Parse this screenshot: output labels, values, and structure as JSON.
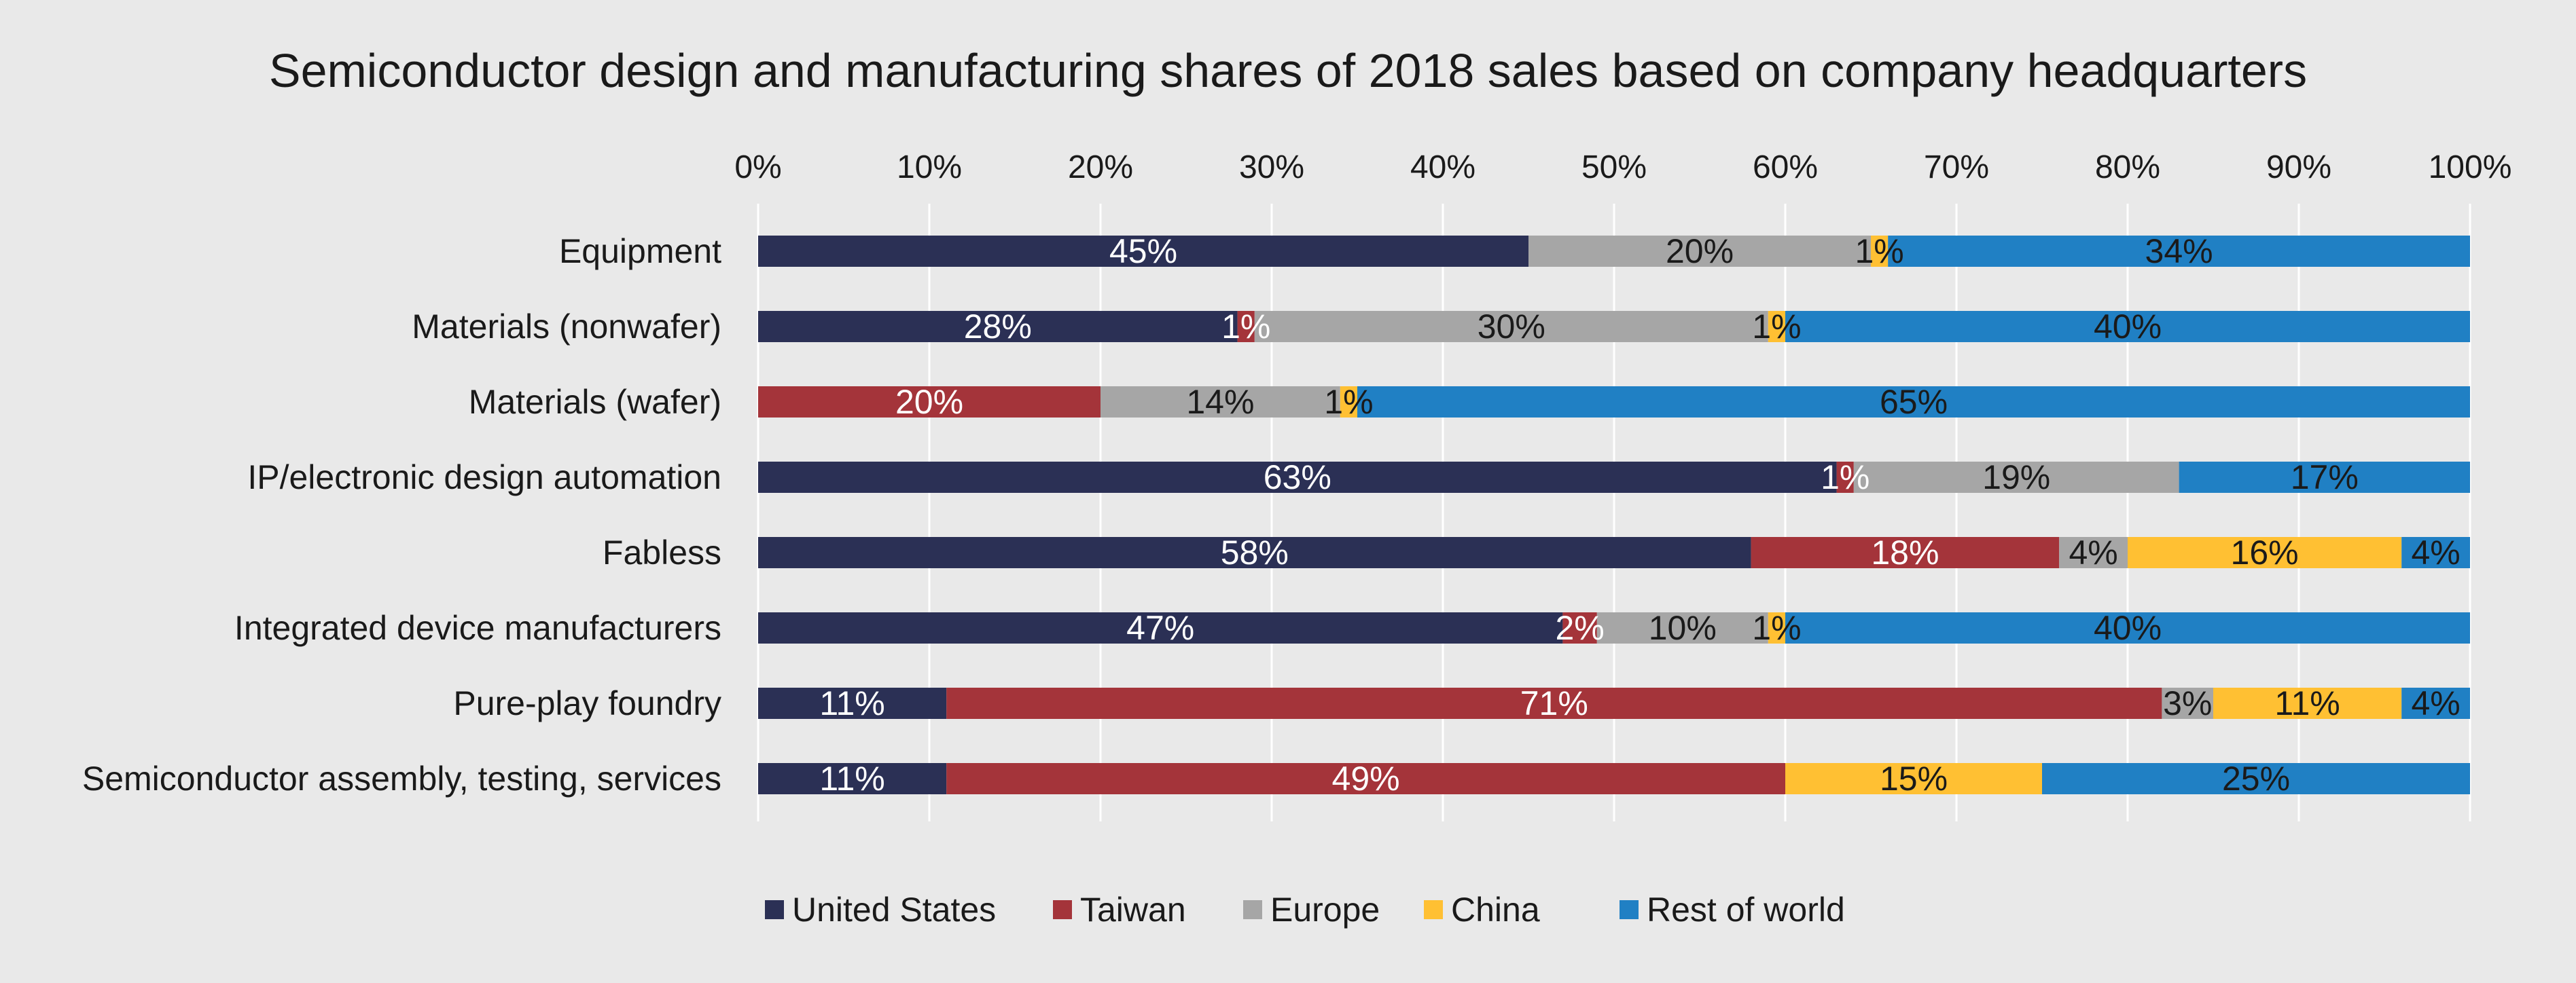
{
  "chart_data": {
    "type": "bar",
    "orientation": "horizontal",
    "stacked": true,
    "title": "Semiconductor design and manufacturing shares of 2018 sales based on company headquarters",
    "xlabel": "",
    "ylabel": "",
    "xlim": [
      0,
      100
    ],
    "x_ticks": [
      "0%",
      "10%",
      "20%",
      "30%",
      "40%",
      "50%",
      "60%",
      "70%",
      "80%",
      "90%",
      "100%"
    ],
    "x_axis_position": "top",
    "grid": true,
    "legend_position": "bottom",
    "categories": [
      "Equipment",
      "Materials (nonwafer)",
      "Materials (wafer)",
      "IP/electronic design automation",
      "Fabless",
      "Integrated device manufacturers",
      "Pure-play foundry",
      "Semiconductor assembly, testing, services"
    ],
    "series": [
      {
        "name": "United States",
        "color": "#2b3055",
        "label_color": "#ffffff",
        "values": [
          45,
          28,
          0,
          63,
          58,
          47,
          11,
          11
        ],
        "labels": [
          "45%",
          "28%",
          "",
          "63%",
          "58%",
          "47%",
          "11%",
          "11%"
        ]
      },
      {
        "name": "Taiwan",
        "color": "#a4343a",
        "label_color": "#ffffff",
        "values": [
          0,
          1,
          20,
          1,
          18,
          2,
          71,
          49
        ],
        "labels": [
          "",
          "1%",
          "20%",
          "1%",
          "18%",
          "2%",
          "71%",
          "49%"
        ]
      },
      {
        "name": "Europe",
        "color": "#a6a6a6",
        "label_color": "#1a1a1a",
        "values": [
          20,
          30,
          14,
          19,
          4,
          10,
          3,
          0
        ],
        "labels": [
          "20%",
          "30%",
          "14%",
          "19%",
          "4%",
          "10%",
          "3%",
          ""
        ]
      },
      {
        "name": "China",
        "color": "#ffc033",
        "label_color": "#1a1a1a",
        "values": [
          1,
          1,
          1,
          0,
          16,
          1,
          11,
          15
        ],
        "labels": [
          "1%",
          "1%",
          "1%",
          "",
          "16%",
          "1%",
          "11%",
          "15%"
        ]
      },
      {
        "name": "Rest of world",
        "color": "#2080c4",
        "label_color": "#1a1a1a",
        "values": [
          34,
          40,
          65,
          17,
          4,
          40,
          4,
          25
        ],
        "labels": [
          "34%",
          "40%",
          "65%",
          "17%",
          "4%",
          "40%",
          "4%",
          "25%"
        ]
      }
    ],
    "colors": {
      "background": "#e9e9e9",
      "gridline": "#ffffff",
      "text": "#1a1a1a"
    }
  }
}
